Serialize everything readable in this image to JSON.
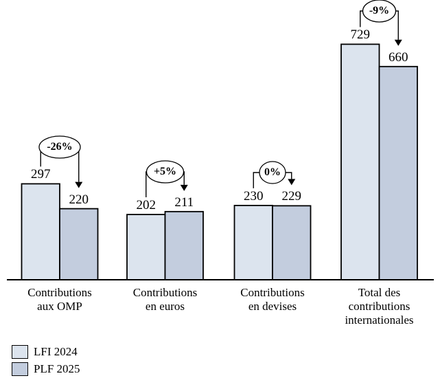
{
  "chart_data": {
    "type": "bar",
    "title": "",
    "categories": [
      "Contributions aux OMP",
      "Contributions en euros",
      "Contributions en devises",
      "Total des contributions internationales"
    ],
    "category_lines": [
      [
        "Contributions",
        "aux OMP"
      ],
      [
        "Contributions",
        "en euros"
      ],
      [
        "Contributions",
        "en devises"
      ],
      [
        "Total des",
        "contributions",
        "internationales"
      ]
    ],
    "series": [
      {
        "name": "LFI 2024",
        "color": "#dce4ee",
        "values": [
          297,
          202,
          230,
          729
        ]
      },
      {
        "name": "PLF 2025",
        "color": "#c3cdde",
        "values": [
          220,
          211,
          229,
          660
        ]
      }
    ],
    "annotations": [
      {
        "group": "Contributions aux OMP",
        "label": "-26%"
      },
      {
        "group": "Contributions en euros",
        "label": "+5%"
      },
      {
        "group": "Contributions en devises",
        "label": "0%"
      },
      {
        "group": "Total des contributions internationales",
        "label": "-9%"
      }
    ],
    "legend": {
      "position": "bottom-left",
      "entries": [
        "LFI 2024",
        "PLF 2025"
      ]
    },
    "axes": {
      "x_axis_visible": true,
      "y_axis_visible": false,
      "grid": false,
      "value_labels": true,
      "ylim": [
        0,
        780
      ]
    },
    "colors": {
      "bar_border": "#000000",
      "axis_line": "#000000",
      "annotation_fill": "#ffffff",
      "annotation_border": "#000000",
      "text": "#000000",
      "background": "#ffffff"
    }
  }
}
